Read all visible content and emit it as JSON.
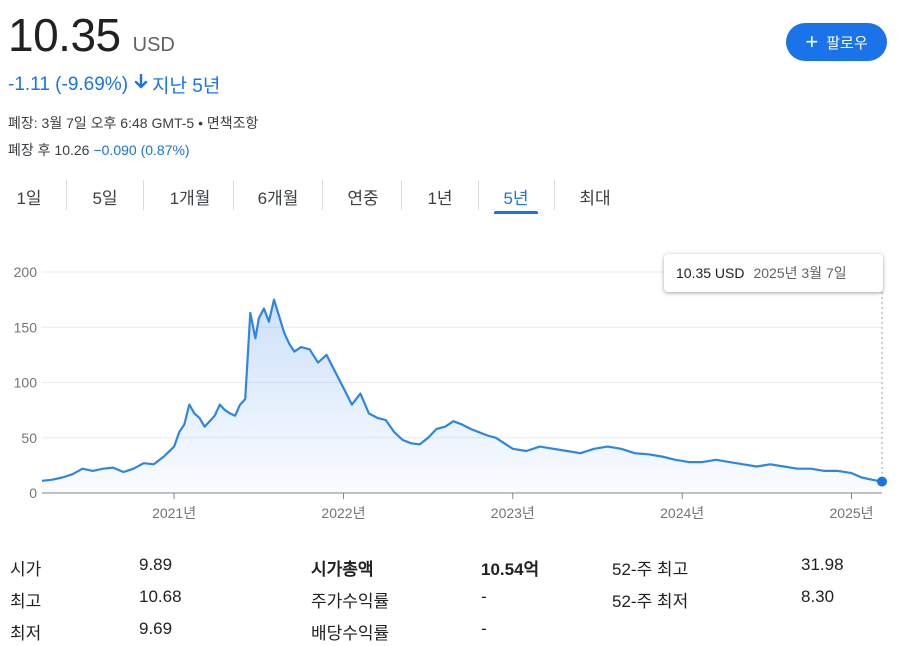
{
  "quote": {
    "price": "10.35",
    "currency": "USD",
    "change": "-1.11 (-9.69%)",
    "period": "지난 5년",
    "follow_label": "팔로우",
    "close_info": "폐장: 3월 7일 오후 6:48 GMT-5 • 면책조항",
    "after_hours_label": "폐장 후 10.26",
    "after_hours_change": "−0.090 (0.87%)"
  },
  "tabs": [
    {
      "label": "1일",
      "active": false
    },
    {
      "label": "5일",
      "active": false
    },
    {
      "label": "1개월",
      "active": false
    },
    {
      "label": "6개월",
      "active": false
    },
    {
      "label": "연중",
      "active": false
    },
    {
      "label": "1년",
      "active": false
    },
    {
      "label": "5년",
      "active": true
    },
    {
      "label": "최대",
      "active": false
    }
  ],
  "tooltip": {
    "price": "10.35 USD",
    "date": "2025년 3월 7일"
  },
  "colors": {
    "accent": "#1a73e8",
    "line": "#2f86e0",
    "text": "#202124"
  },
  "chart_data": {
    "type": "area",
    "x_unit": "year",
    "y_ticks": [
      "200",
      "150",
      "100",
      "50",
      "0"
    ],
    "x_ticks": [
      "2021년",
      "2022년",
      "2023년",
      "2024년",
      "2025년"
    ],
    "x_tick_values": [
      2021.0,
      2022.0,
      2023.0,
      2024.0,
      2025.0
    ],
    "xlim": [
      2020.22,
      2025.18
    ],
    "ylim": [
      0,
      200
    ],
    "grid": true,
    "x": [
      2020.22,
      2020.28,
      2020.34,
      2020.4,
      2020.46,
      2020.52,
      2020.58,
      2020.64,
      2020.7,
      2020.76,
      2020.82,
      2020.88,
      2020.94,
      2021.0,
      2021.03,
      2021.06,
      2021.09,
      2021.12,
      2021.15,
      2021.18,
      2021.21,
      2021.24,
      2021.27,
      2021.3,
      2021.33,
      2021.36,
      2021.39,
      2021.42,
      2021.45,
      2021.48,
      2021.5,
      2021.53,
      2021.56,
      2021.59,
      2021.62,
      2021.65,
      2021.68,
      2021.71,
      2021.75,
      2021.8,
      2021.85,
      2021.9,
      2021.95,
      2022.0,
      2022.05,
      2022.1,
      2022.15,
      2022.2,
      2022.25,
      2022.3,
      2022.35,
      2022.4,
      2022.45,
      2022.5,
      2022.55,
      2022.6,
      2022.65,
      2022.7,
      2022.75,
      2022.8,
      2022.85,
      2022.9,
      2022.95,
      2023.0,
      2023.08,
      2023.16,
      2023.24,
      2023.32,
      2023.4,
      2023.48,
      2023.56,
      2023.64,
      2023.72,
      2023.8,
      2023.88,
      2023.96,
      2024.04,
      2024.12,
      2024.2,
      2024.28,
      2024.36,
      2024.44,
      2024.52,
      2024.6,
      2024.68,
      2024.76,
      2024.84,
      2024.92,
      2025.0,
      2025.06,
      2025.12,
      2025.18
    ],
    "y": [
      11,
      12,
      14,
      17,
      22,
      20,
      22,
      23,
      19,
      22,
      27,
      26,
      33,
      42,
      55,
      62,
      80,
      72,
      68,
      60,
      65,
      70,
      80,
      75,
      72,
      70,
      80,
      85,
      163,
      140,
      158,
      167,
      155,
      175,
      160,
      145,
      135,
      128,
      132,
      130,
      118,
      125,
      110,
      95,
      80,
      90,
      72,
      68,
      66,
      55,
      48,
      45,
      44,
      50,
      58,
      60,
      65,
      62,
      58,
      55,
      52,
      50,
      45,
      40,
      38,
      42,
      40,
      38,
      36,
      40,
      42,
      40,
      36,
      35,
      33,
      30,
      28,
      28,
      30,
      28,
      26,
      24,
      26,
      24,
      22,
      22,
      20,
      20,
      18,
      14,
      12,
      10.35
    ],
    "last_price": 10.35
  }
}
